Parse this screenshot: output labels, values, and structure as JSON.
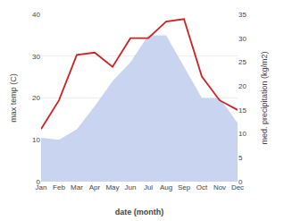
{
  "chart_data": {
    "type": "area",
    "xlabel": "date (month)",
    "ylabel": "max temp (C)",
    "y2label": "med. precipitation (kg/m2)",
    "categories": [
      "Jan",
      "Feb",
      "Mar",
      "Apr",
      "May",
      "Jun",
      "Jul",
      "Aug",
      "Sep",
      "Oct",
      "Nov",
      "Dec"
    ],
    "series": [
      {
        "type": "area",
        "color": "#c8d4f0",
        "values": [
          10.5,
          10.0,
          12.5,
          18.0,
          24.0,
          28.5,
          35.0,
          35.0,
          27.5,
          20.0,
          20.0,
          14.0
        ]
      },
      {
        "type": "line",
        "color": "#cc2222",
        "axis": "y2",
        "values": [
          11.0,
          17.0,
          26.5,
          27.0,
          24.0,
          30.0,
          30.0,
          33.5,
          34.0,
          22.0,
          17.0,
          15.0
        ]
      }
    ],
    "ylim": [
      0,
      40
    ],
    "yticks": [
      0,
      10,
      20,
      30,
      40
    ],
    "y2lim": [
      0,
      35
    ],
    "y2ticks": [
      0,
      5,
      10,
      15,
      20,
      25,
      30,
      35
    ],
    "grid": true
  }
}
